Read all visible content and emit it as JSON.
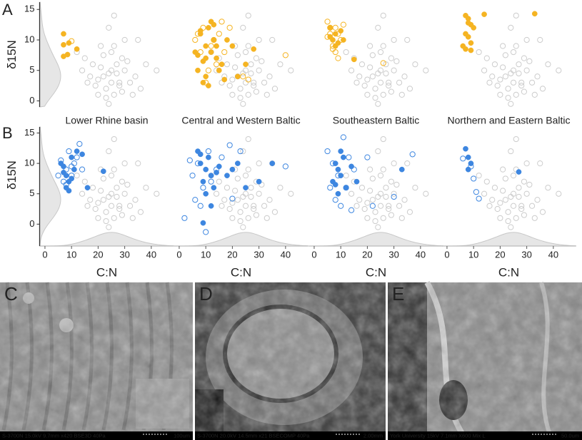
{
  "chart_data": [
    {
      "type": "scatter",
      "panel_label": "A",
      "ylabel": "δ15N",
      "xlim": [
        -2,
        48.5
      ],
      "ylim": [
        -1,
        16.2
      ],
      "yticks": [
        0,
        5,
        10,
        15
      ],
      "series": [
        {
          "color": "#cccccc",
          "marker": "open",
          "x": [
            25,
            22,
            28,
            30,
            18,
            20,
            26,
            24,
            32,
            15,
            27,
            23,
            21,
            29,
            34,
            19,
            25,
            31,
            17,
            22,
            26,
            28,
            24,
            36,
            14,
            20,
            30,
            27,
            23,
            38,
            16,
            25,
            33,
            21,
            29,
            26,
            42,
            12,
            35,
            24
          ],
          "values": [
            3,
            4,
            2.5,
            5,
            6,
            3.5,
            1,
            4.5,
            3,
            7,
            6,
            2,
            5.5,
            1.5,
            4,
            2.5,
            8,
            6.5,
            4,
            7.5,
            9,
            3,
            12,
            2,
            5,
            1,
            10,
            4.5,
            0.5,
            6,
            3,
            5,
            1,
            9,
            7,
            14,
            5,
            8,
            10,
            -0.5
          ]
        },
        {
          "color": "#f5b422",
          "marker": "filled",
          "x": [
            7,
            9,
            7,
            8.5,
            12,
            7
          ],
          "values": [
            11,
            9.5,
            7.3,
            7.6,
            8.5,
            9.2
          ]
        },
        {
          "color": "#f5b422",
          "marker": "open",
          "x": [
            10
          ],
          "values": [
            9.8
          ]
        }
      ]
    },
    {
      "type": "scatter",
      "xlim": [
        -2,
        48.5
      ],
      "ylim": [
        -1,
        16.2
      ],
      "series": [
        {
          "color": "#f5b422",
          "marker": "filled",
          "x": [
            8,
            10,
            12,
            14,
            9,
            11,
            7,
            13,
            15,
            10,
            6,
            12,
            9,
            18,
            20,
            16,
            11,
            8,
            22,
            14,
            10,
            25,
            28,
            13,
            7,
            17
          ],
          "values": [
            11,
            9,
            8,
            7,
            6.5,
            12,
            7.5,
            10,
            5,
            4,
            8,
            13,
            3,
            10,
            9,
            6,
            2.5,
            11.5,
            4,
            9,
            7,
            6,
            8.5,
            12.5,
            5,
            3.5
          ]
        },
        {
          "color": "#f5b422",
          "marker": "open",
          "x": [
            6,
            9,
            12,
            15,
            8,
            11,
            14,
            17,
            10,
            13,
            19,
            24,
            7,
            16,
            40,
            26
          ],
          "values": [
            10,
            12,
            9,
            11,
            8,
            5,
            6,
            8,
            3,
            10,
            12,
            4,
            11,
            13,
            7.5,
            3.5
          ]
        }
      ]
    },
    {
      "type": "scatter",
      "xlim": [
        -2,
        48.5
      ],
      "ylim": [
        -1,
        16.2
      ],
      "series": [
        {
          "color": "#f5b422",
          "marker": "filled",
          "x": [
            6,
            8,
            7,
            9,
            10,
            6,
            8,
            11,
            15
          ],
          "values": [
            12,
            11,
            10,
            9.5,
            11.5,
            10.5,
            9,
            10,
            6.8
          ]
        },
        {
          "color": "#f5b422",
          "marker": "open",
          "x": [
            5,
            6,
            7,
            8,
            9,
            10,
            6,
            7,
            8,
            5,
            26,
            11,
            9
          ],
          "values": [
            13,
            11,
            9,
            8,
            7,
            10,
            12,
            8.5,
            12,
            10.5,
            6.2,
            12.5,
            11
          ]
        }
      ]
    },
    {
      "type": "scatter",
      "xlim": [
        -2,
        48.5
      ],
      "ylim": [
        -1,
        16.2
      ],
      "series": [
        {
          "color": "#f5b422",
          "marker": "filled",
          "x": [
            7,
            8,
            9,
            10,
            7,
            8,
            9,
            6,
            7,
            9,
            14,
            33,
            8
          ],
          "values": [
            14,
            13.5,
            12.5,
            12,
            11,
            10.5,
            9.5,
            9,
            8.5,
            8.3,
            14.2,
            14.3,
            12.8
          ]
        }
      ]
    },
    {
      "type": "scatter",
      "panel_label": "B",
      "title": "Lower Rhine basin",
      "ylabel": "δ15N",
      "xlabel": "C:N",
      "xlim": [
        -2,
        48.5
      ],
      "ylim": [
        -3.6,
        16
      ],
      "yticks": [
        0,
        5,
        10,
        15
      ],
      "xticks": [
        0,
        10,
        20,
        30,
        40
      ],
      "series": [
        {
          "color": "#3d86e0",
          "marker": "filled",
          "x": [
            7,
            8,
            10,
            9,
            11,
            6,
            12,
            8,
            14,
            7,
            10,
            22,
            16,
            9
          ],
          "values": [
            9.5,
            8,
            11,
            7,
            9,
            10,
            12,
            6,
            11.5,
            8.5,
            7.5,
            8.7,
            6,
            5.5
          ]
        },
        {
          "color": "#3d86e0",
          "marker": "open",
          "x": [
            6,
            8,
            10,
            12,
            7,
            9,
            11,
            13,
            5,
            8,
            10,
            14
          ],
          "values": [
            10.5,
            9,
            8,
            11,
            7,
            12,
            10,
            13.2,
            8,
            6.5,
            9.5,
            9
          ]
        }
      ]
    },
    {
      "type": "scatter",
      "title": "Central and Western Baltic",
      "xlabel": "C:N",
      "xlim": [
        -2,
        48.5
      ],
      "ylim": [
        -3.6,
        16
      ],
      "xticks": [
        0,
        10,
        20,
        30,
        40
      ],
      "series": [
        {
          "color": "#3d86e0",
          "marker": "filled",
          "x": [
            8,
            10,
            12,
            9,
            11,
            13,
            7,
            15,
            18,
            10,
            22,
            25,
            35,
            30,
            12,
            9,
            20,
            14,
            8
          ],
          "values": [
            10,
            9,
            8,
            7,
            11,
            6,
            12,
            9.5,
            8,
            5,
            10,
            6,
            10,
            7,
            3,
            0.2,
            9,
            8.5,
            11.5
          ]
        },
        {
          "color": "#3d86e0",
          "marker": "open",
          "x": [
            2,
            5,
            7,
            9,
            11,
            14,
            16,
            6,
            12,
            19,
            23,
            40,
            10,
            8,
            4,
            20
          ],
          "values": [
            1,
            8,
            10,
            6,
            12,
            9,
            11,
            4,
            7,
            13,
            12,
            9.5,
            -1.3,
            3,
            10.5,
            4.2
          ]
        }
      ]
    },
    {
      "type": "scatter",
      "title": "Southeastern Baltic",
      "xlabel": "C:N",
      "xlim": [
        -2,
        48.5
      ],
      "ylim": [
        -3.6,
        16
      ],
      "xticks": [
        0,
        10,
        20,
        30,
        40
      ],
      "series": [
        {
          "color": "#3d86e0",
          "marker": "filled",
          "x": [
            8,
            9,
            10,
            11,
            7,
            12,
            9,
            10,
            14,
            16,
            33,
            8
          ],
          "values": [
            10,
            9,
            8,
            11,
            7,
            6,
            5,
            12,
            9.5,
            7,
            9,
            6.5
          ]
        },
        {
          "color": "#3d86e0",
          "marker": "open",
          "x": [
            5,
            7,
            9,
            11,
            13,
            15,
            8,
            10,
            12,
            20,
            37,
            6,
            14,
            22,
            30
          ],
          "values": [
            12,
            10,
            8,
            14.3,
            11,
            9,
            4,
            3,
            6,
            11,
            11.5,
            6,
            2.3,
            3,
            4.5
          ]
        }
      ]
    },
    {
      "type": "scatter",
      "title": "Northern and Eastern Baltic",
      "xlabel": "C:N",
      "xlim": [
        -2,
        48.5
      ],
      "ylim": [
        -3.6,
        16
      ],
      "xticks": [
        0,
        10,
        20,
        30,
        40
      ],
      "series": [
        {
          "color": "#3d86e0",
          "marker": "filled",
          "x": [
            7,
            8,
            9,
            8,
            27
          ],
          "values": [
            12.4,
            11,
            10,
            9,
            8.6
          ]
        },
        {
          "color": "#3d86e0",
          "marker": "open",
          "x": [
            6,
            9,
            10,
            11,
            12
          ],
          "values": [
            10.8,
            9.5,
            7.5,
            5.3,
            4.2
          ]
        }
      ]
    }
  ],
  "images": [
    {
      "label": "C",
      "caption": "S-3700N 15.0kV 9.7mm x420 BSE3D 40Pa",
      "scale": "100um"
    },
    {
      "label": "D",
      "caption": "S-3700N 20.0kV 14.5mm x21 BSECOMP 40Pa",
      "scale": "2.00mm"
    },
    {
      "label": "E",
      "caption": "York University 15kV 7.1mm X600 Mix L",
      "scale": "50.0um"
    }
  ]
}
